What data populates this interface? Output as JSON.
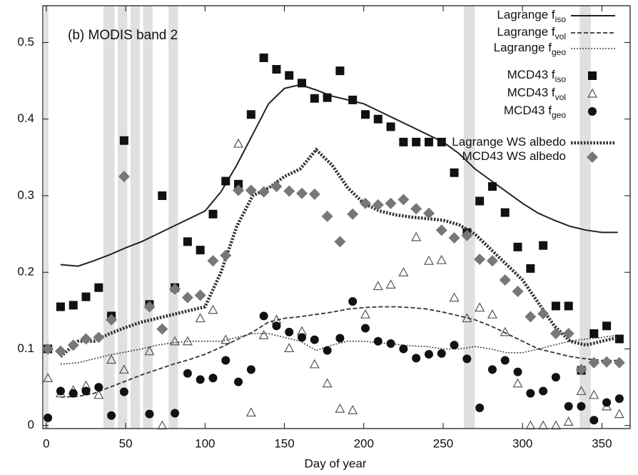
{
  "chart_data": {
    "type": "line",
    "annotation": "(b) MODIS band 2",
    "x_label": "Day of year",
    "xlim": [
      -2.2,
      367.8
    ],
    "ylim": [
      -0.004,
      0.548
    ],
    "xticks": [
      0,
      50,
      100,
      150,
      200,
      250,
      300,
      350
    ],
    "yticks": [
      0,
      0.1,
      0.2,
      0.3,
      0.4,
      0.5
    ],
    "shaded_days": [
      [
        -1.3,
        1.3
      ],
      [
        36,
        43
      ],
      [
        45,
        51
      ],
      [
        53,
        59
      ],
      [
        61,
        67
      ],
      [
        77,
        83
      ],
      [
        263,
        270
      ],
      [
        336,
        343
      ]
    ],
    "shade_color": "#e0e0e0",
    "series": [
      {
        "name": "Lagrange  f",
        "subscript": "iso",
        "style": "solid",
        "color": "#222222",
        "x": [
          9,
          20,
          30,
          40,
          50,
          60,
          70,
          80,
          90,
          100,
          110,
          120,
          130,
          140,
          150,
          160,
          170,
          180,
          190,
          200,
          210,
          220,
          230,
          240,
          250,
          260,
          270,
          280,
          290,
          300,
          310,
          320,
          330,
          340,
          350,
          360
        ],
        "values": [
          0.21,
          0.208,
          0.215,
          0.223,
          0.232,
          0.24,
          0.25,
          0.26,
          0.27,
          0.28,
          0.305,
          0.34,
          0.38,
          0.42,
          0.44,
          0.445,
          0.438,
          0.43,
          0.425,
          0.42,
          0.41,
          0.4,
          0.39,
          0.38,
          0.37,
          0.355,
          0.335,
          0.32,
          0.305,
          0.29,
          0.277,
          0.268,
          0.26,
          0.255,
          0.252,
          0.252
        ]
      },
      {
        "name": "Lagrange  f",
        "subscript": "vol",
        "style": "dashed",
        "color": "#333333",
        "x": [
          9,
          20,
          30,
          40,
          50,
          60,
          70,
          80,
          90,
          100,
          110,
          120,
          130,
          140,
          150,
          160,
          170,
          180,
          190,
          200,
          210,
          220,
          230,
          240,
          250,
          260,
          270,
          280,
          290,
          300,
          310,
          320,
          330,
          340,
          350,
          360
        ],
        "values": [
          0.037,
          0.038,
          0.042,
          0.05,
          0.058,
          0.066,
          0.073,
          0.08,
          0.086,
          0.093,
          0.102,
          0.112,
          0.122,
          0.135,
          0.14,
          0.142,
          0.145,
          0.148,
          0.152,
          0.154,
          0.155,
          0.155,
          0.154,
          0.152,
          0.148,
          0.143,
          0.138,
          0.13,
          0.12,
          0.11,
          0.1,
          0.095,
          0.09,
          0.087,
          0.085,
          0.085
        ]
      },
      {
        "name": "Lagrange f",
        "subscript": "geo",
        "style": "dotted",
        "color": "#444444",
        "x": [
          9,
          20,
          30,
          40,
          50,
          60,
          70,
          80,
          90,
          100,
          110,
          120,
          130,
          140,
          150,
          160,
          170,
          180,
          190,
          200,
          210,
          220,
          230,
          240,
          250,
          260,
          270,
          280,
          290,
          300,
          310,
          320,
          330,
          340,
          350,
          360
        ],
        "values": [
          0.08,
          0.082,
          0.087,
          0.092,
          0.096,
          0.1,
          0.105,
          0.108,
          0.11,
          0.11,
          0.11,
          0.115,
          0.12,
          0.12,
          0.115,
          0.11,
          0.098,
          0.105,
          0.11,
          0.11,
          0.108,
          0.106,
          0.104,
          0.103,
          0.1,
          0.1,
          0.103,
          0.1,
          0.095,
          0.095,
          0.1,
          0.105,
          0.11,
          0.113,
          0.115,
          0.118
        ]
      },
      {
        "name": "MCD43  f",
        "subscript": "iso",
        "marker": "square",
        "color": "#111111",
        "x": [
          1,
          9,
          17,
          25,
          33,
          41,
          49,
          57,
          65,
          73,
          81,
          89,
          97,
          105,
          113,
          121,
          129,
          137,
          145,
          153,
          161,
          169,
          177,
          185,
          193,
          201,
          209,
          217,
          225,
          233,
          241,
          249,
          257,
          265,
          273,
          281,
          289,
          297,
          305,
          313,
          321,
          329,
          337,
          345,
          353,
          361
        ],
        "values": [
          0.1,
          0.155,
          0.157,
          0.168,
          0.18,
          0.143,
          0.372,
          null,
          0.158,
          0.3,
          0.18,
          0.24,
          0.229,
          0.276,
          0.319,
          0.315,
          0.406,
          0.48,
          0.465,
          0.457,
          0.447,
          0.427,
          0.428,
          0.463,
          0.425,
          0.406,
          0.4,
          0.39,
          0.37,
          0.37,
          0.37,
          0.37,
          0.33,
          0.252,
          0.293,
          0.312,
          0.278,
          0.233,
          0.205,
          0.235,
          0.156,
          0.156,
          0.072,
          0.12,
          0.13,
          0.113
        ]
      },
      {
        "name": "MCD43  f",
        "subscript": "vol",
        "marker": "triangle",
        "color": "#555555",
        "x": [
          1,
          9,
          17,
          25,
          33,
          41,
          49,
          57,
          65,
          73,
          81,
          89,
          97,
          105,
          113,
          121,
          129,
          137,
          145,
          153,
          161,
          169,
          177,
          185,
          193,
          201,
          209,
          217,
          225,
          233,
          241,
          249,
          257,
          265,
          273,
          281,
          289,
          297,
          305,
          313,
          321,
          329,
          337,
          345,
          353,
          361
        ],
        "values": [
          0.062,
          0.042,
          0.046,
          0.052,
          0.04,
          0.086,
          0.073,
          null,
          0.097,
          0.0,
          0.11,
          0.11,
          0.14,
          0.151,
          0.112,
          0.368,
          0.017,
          0.118,
          0.138,
          0.101,
          0.123,
          0.08,
          0.055,
          0.022,
          0.02,
          0.145,
          0.182,
          0.184,
          0.2,
          0.246,
          0.215,
          0.216,
          0.167,
          0.14,
          0.154,
          0.145,
          0.122,
          0.055,
          0.0,
          0.0,
          0.0,
          0.005,
          0.045,
          0.04,
          0.025,
          0.015
        ]
      },
      {
        "name": "MCD43 f",
        "subscript": "geo",
        "marker": "circle",
        "color": "#111111",
        "x": [
          1,
          9,
          17,
          25,
          33,
          41,
          49,
          57,
          65,
          73,
          81,
          89,
          97,
          105,
          113,
          121,
          129,
          137,
          145,
          153,
          161,
          169,
          177,
          185,
          193,
          201,
          209,
          217,
          225,
          233,
          241,
          249,
          257,
          265,
          273,
          281,
          289,
          297,
          305,
          313,
          321,
          329,
          337,
          345,
          353,
          361
        ],
        "values": [
          0.01,
          0.045,
          0.042,
          0.045,
          0.05,
          0.013,
          0.044,
          null,
          0.015,
          null,
          0.016,
          0.068,
          0.06,
          0.062,
          0.085,
          0.057,
          0.073,
          0.143,
          0.13,
          0.122,
          0.115,
          0.112,
          0.098,
          0.114,
          0.162,
          0.127,
          0.11,
          0.107,
          0.1,
          0.088,
          0.093,
          0.094,
          0.105,
          0.087,
          0.023,
          0.073,
          0.085,
          0.07,
          0.042,
          0.045,
          0.063,
          0.025,
          0.025,
          0.007,
          0.03,
          0.035
        ]
      },
      {
        "name": "Lagrange  WS albedo",
        "style": "thick-dotted",
        "color": "#333333",
        "x": [
          9,
          20,
          30,
          40,
          50,
          60,
          70,
          80,
          90,
          100,
          110,
          120,
          130,
          140,
          150,
          160,
          170,
          180,
          190,
          200,
          210,
          220,
          230,
          240,
          250,
          260,
          270,
          280,
          290,
          300,
          310,
          320,
          330,
          340,
          350,
          360
        ],
        "values": [
          0.09,
          0.11,
          0.11,
          0.12,
          0.128,
          0.135,
          0.14,
          0.145,
          0.15,
          0.155,
          0.2,
          0.26,
          0.3,
          0.31,
          0.325,
          0.335,
          0.36,
          0.34,
          0.31,
          0.29,
          0.28,
          0.275,
          0.272,
          0.27,
          0.268,
          0.262,
          0.25,
          0.23,
          0.21,
          0.19,
          0.16,
          0.13,
          0.11,
          0.105,
          0.11,
          0.115
        ]
      },
      {
        "name": "MCD43 WS albedo",
        "marker": "diamond",
        "color": "#777777",
        "x": [
          1,
          9,
          17,
          25,
          33,
          41,
          49,
          57,
          65,
          73,
          81,
          89,
          97,
          105,
          113,
          121,
          129,
          137,
          145,
          153,
          161,
          169,
          177,
          185,
          193,
          201,
          209,
          217,
          225,
          233,
          241,
          249,
          257,
          265,
          273,
          281,
          289,
          297,
          305,
          313,
          321,
          329,
          337,
          345,
          353,
          361
        ],
        "values": [
          0.1,
          0.097,
          0.105,
          0.113,
          0.115,
          0.138,
          0.325,
          null,
          0.155,
          0.126,
          0.178,
          0.167,
          0.17,
          0.215,
          0.222,
          0.307,
          0.307,
          0.305,
          0.312,
          0.306,
          0.303,
          0.302,
          0.273,
          0.24,
          0.276,
          0.29,
          0.288,
          0.29,
          0.295,
          0.283,
          0.277,
          0.255,
          0.245,
          0.248,
          0.217,
          0.215,
          0.19,
          0.175,
          0.142,
          0.146,
          0.12,
          0.12,
          0.073,
          0.082,
          0.083,
          0.082
        ]
      }
    ]
  }
}
